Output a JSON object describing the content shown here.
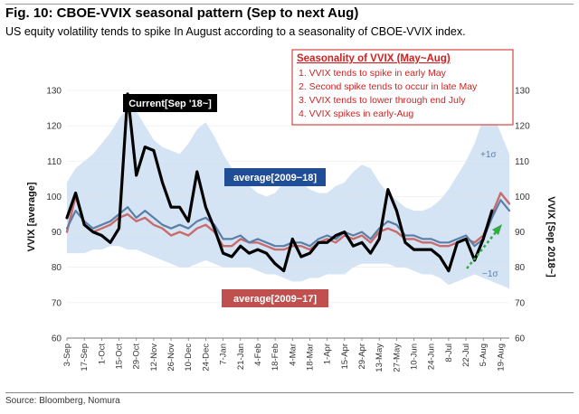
{
  "figure": {
    "title": "Fig. 10: CBOE-VVIX seasonal pattern (Sep to next Aug)",
    "subtitle": "US equity volatility tends to spike In August according to a seasonality of CBOE-VVIX index.",
    "source": "Source: Bloomberg, Nomura"
  },
  "callout": {
    "heading": "Seasonality of VVIX (May~Aug)",
    "items": [
      "1.  VVIX tends to spike in early May",
      "2.  Second spike tends to occur in late May",
      "3.  VVIX tends to lower through end July",
      "4.  VVIX spikes in early-Aug"
    ],
    "color": "#cc2222"
  },
  "chart_data": {
    "type": "line",
    "title": "Fig. 10: CBOE-VVIX seasonal pattern (Sep to next Aug)",
    "ylabel_left": "VVIX [average]",
    "ylabel_right": "VVIX [Sep 2018~]",
    "ylim": [
      60,
      130
    ],
    "yticks": [
      60,
      70,
      80,
      90,
      100,
      110,
      120,
      130
    ],
    "x_count": 52,
    "xticks": [
      {
        "i": 0,
        "label": "3-Sep"
      },
      {
        "i": 2,
        "label": "17-Sep"
      },
      {
        "i": 4,
        "label": "1-Oct"
      },
      {
        "i": 6,
        "label": "15-Oct"
      },
      {
        "i": 8,
        "label": "29-Oct"
      },
      {
        "i": 10,
        "label": "12-Nov"
      },
      {
        "i": 12,
        "label": "26-Nov"
      },
      {
        "i": 14,
        "label": "10-Dec"
      },
      {
        "i": 16,
        "label": "24-Dec"
      },
      {
        "i": 18,
        "label": "7-Jan"
      },
      {
        "i": 20,
        "label": "21-Jan"
      },
      {
        "i": 22,
        "label": "4-Feb"
      },
      {
        "i": 24,
        "label": "18-Feb"
      },
      {
        "i": 26,
        "label": "4-Mar"
      },
      {
        "i": 28,
        "label": "18-Mar"
      },
      {
        "i": 30,
        "label": "1-Apr"
      },
      {
        "i": 32,
        "label": "15-Apr"
      },
      {
        "i": 34,
        "label": "29-Apr"
      },
      {
        "i": 36,
        "label": "13-May"
      },
      {
        "i": 38,
        "label": "27-May"
      },
      {
        "i": 40,
        "label": "10-Jun"
      },
      {
        "i": 42,
        "label": "24-Jun"
      },
      {
        "i": 44,
        "label": "8-Jul"
      },
      {
        "i": 46,
        "label": "22-Jul"
      },
      {
        "i": 48,
        "label": "5-Aug"
      },
      {
        "i": 50,
        "label": "19-Aug"
      }
    ],
    "band": {
      "labels": [
        "+1σ",
        "−1σ"
      ],
      "upper": [
        104,
        108,
        110,
        112,
        115,
        118,
        122,
        125,
        124,
        120,
        116,
        114,
        113,
        112,
        115,
        119,
        121,
        117,
        112,
        108,
        105,
        103,
        101,
        100,
        101,
        104,
        106,
        104,
        102,
        101,
        101,
        103,
        104,
        107,
        109,
        108,
        104,
        101,
        99,
        97,
        96,
        96,
        97,
        99,
        102,
        106,
        110,
        115,
        122,
        124,
        118,
        112
      ],
      "lower": [
        84,
        84,
        84,
        85,
        85,
        86,
        86,
        85,
        85,
        84,
        83,
        82,
        81,
        80,
        80,
        81,
        82,
        81,
        80,
        80,
        80,
        80,
        79,
        78,
        78,
        77,
        76,
        76,
        77,
        77,
        78,
        78,
        78,
        80,
        81,
        81,
        81,
        81,
        80,
        80,
        79,
        78,
        78,
        77,
        75,
        76,
        77,
        78,
        77,
        76,
        75,
        74
      ]
    },
    "series": [
      {
        "name": "Current[Sep '18~]",
        "color": "#000000",
        "values": [
          94,
          101,
          92,
          90,
          89,
          87,
          91,
          129,
          106,
          114,
          113,
          104,
          97,
          97,
          93,
          107,
          97,
          91,
          84,
          83,
          86,
          84,
          85,
          84,
          81,
          79,
          88,
          83,
          84,
          87,
          87,
          89,
          90,
          86,
          87,
          84,
          88,
          102,
          96,
          87,
          85,
          85,
          85,
          83,
          79,
          87,
          88,
          82,
          88,
          96,
          null,
          null
        ]
      },
      {
        "name": "average[2009−18]",
        "color": "#5b7fa6",
        "values": [
          91,
          96,
          93,
          91,
          92,
          93,
          95,
          97,
          94,
          96,
          94,
          92,
          91,
          92,
          91,
          93,
          94,
          92,
          88,
          88,
          89,
          87,
          88,
          87,
          86,
          86,
          87,
          87,
          86,
          88,
          89,
          88,
          90,
          89,
          90,
          88,
          91,
          93,
          92,
          89,
          89,
          88,
          88,
          87,
          87,
          88,
          89,
          86,
          88,
          94,
          99,
          96
        ]
      },
      {
        "name": "average[2009−17]",
        "color": "#c96b6b",
        "values": [
          90,
          100,
          92,
          90,
          91,
          92,
          94,
          95,
          93,
          94,
          92,
          91,
          89,
          90,
          89,
          91,
          92,
          90,
          86,
          86,
          88,
          87,
          87,
          86,
          85,
          85,
          86,
          86,
          85,
          87,
          88,
          87,
          89,
          88,
          89,
          87,
          90,
          91,
          90,
          88,
          88,
          87,
          87,
          86,
          86,
          87,
          88,
          87,
          89,
          95,
          101,
          98
        ]
      }
    ],
    "annotations": [
      {
        "text": "Current[Sep '18~]",
        "series": "Current[Sep '18~]"
      },
      {
        "text": "average[2009−18]",
        "series": "average[2009−18]"
      },
      {
        "text": "average[2009−17]",
        "series": "average[2009−17]"
      }
    ]
  }
}
